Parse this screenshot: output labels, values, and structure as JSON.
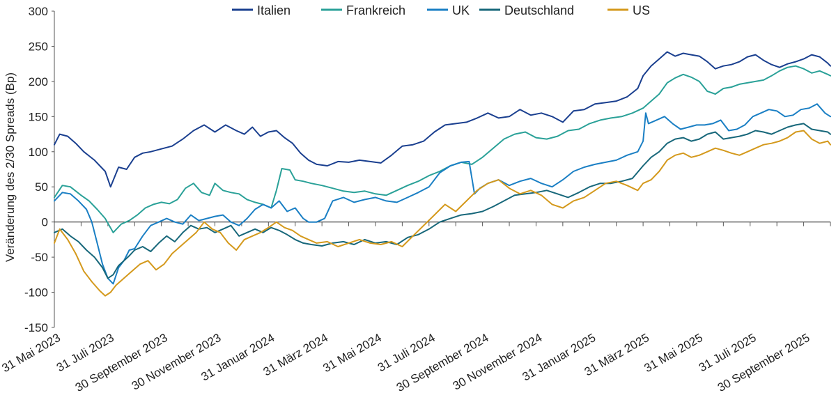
{
  "chart_data": {
    "type": "line",
    "title": "",
    "xlabel": "",
    "ylabel": "Veränderung des 2/30 Spreads (Bp)",
    "ylim": [
      -150,
      300
    ],
    "yticks": [
      300,
      250,
      200,
      150,
      100,
      50,
      0,
      -50,
      -100,
      -150
    ],
    "xlim": [
      0,
      29
    ],
    "x_ticks": [
      {
        "label": "31 Mai 2023",
        "x": 0
      },
      {
        "label": "31 Juli 2023",
        "x": 2
      },
      {
        "label": "30 September 2023",
        "x": 4
      },
      {
        "label": "30 November 2023",
        "x": 6
      },
      {
        "label": "31 Januar 2024",
        "x": 8
      },
      {
        "label": "31 März 2024",
        "x": 10
      },
      {
        "label": "31 Mai 2024",
        "x": 12
      },
      {
        "label": "31 Juli 2024",
        "x": 14
      },
      {
        "label": "30 September 2024",
        "x": 16
      },
      {
        "label": "30 November 2024",
        "x": 18
      },
      {
        "label": "31 Januar 2025",
        "x": 20
      },
      {
        "label": "31 März 2025",
        "x": 22
      },
      {
        "label": "31 Mai 2025",
        "x": 24
      },
      {
        "label": "31 Juli 2025",
        "x": 26
      },
      {
        "label": "30 September 2025",
        "x": 28
      }
    ],
    "legend": "top",
    "series": [
      {
        "name": "Italien",
        "color": "#1a3f8f",
        "x": [
          0,
          0.2,
          0.5,
          0.8,
          1.1,
          1.5,
          1.9,
          2.1,
          2.4,
          2.7,
          3.0,
          3.3,
          3.6,
          4.0,
          4.4,
          4.8,
          5.2,
          5.6,
          6.0,
          6.4,
          6.8,
          7.1,
          7.4,
          7.7,
          8.0,
          8.3,
          8.6,
          8.9,
          9.2,
          9.5,
          9.8,
          10.2,
          10.6,
          11.0,
          11.4,
          11.8,
          12.2,
          12.6,
          13.0,
          13.4,
          13.8,
          14.2,
          14.6,
          15.0,
          15.4,
          15.8,
          16.2,
          16.6,
          17.0,
          17.4,
          17.8,
          18.2,
          18.6,
          19.0,
          19.4,
          19.8,
          20.2,
          20.6,
          21.0,
          21.4,
          21.8,
          22.0,
          22.3,
          22.6,
          22.9,
          23.2,
          23.5,
          23.8,
          24.1,
          24.4,
          24.7,
          25.0,
          25.3,
          25.6,
          25.9,
          26.2,
          26.5,
          26.8,
          27.1,
          27.4,
          27.7,
          28.0,
          28.3,
          28.6,
          28.9,
          29.0
        ],
        "values": [
          110,
          125,
          122,
          112,
          100,
          88,
          72,
          50,
          78,
          75,
          92,
          98,
          100,
          104,
          108,
          118,
          130,
          138,
          128,
          138,
          130,
          125,
          135,
          122,
          128,
          130,
          120,
          112,
          98,
          88,
          82,
          80,
          86,
          85,
          88,
          86,
          84,
          95,
          108,
          110,
          115,
          128,
          138,
          140,
          142,
          148,
          155,
          148,
          150,
          160,
          152,
          155,
          150,
          142,
          158,
          160,
          168,
          170,
          172,
          178,
          190,
          208,
          222,
          232,
          242,
          236,
          240,
          238,
          236,
          228,
          218,
          222,
          224,
          228,
          235,
          238,
          230,
          224,
          220,
          225,
          228,
          232,
          238,
          235,
          226,
          222
        ]
      },
      {
        "name": "Frankreich",
        "color": "#2aa198",
        "x": [
          0,
          0.3,
          0.6,
          1.0,
          1.3,
          1.6,
          1.9,
          2.2,
          2.5,
          2.8,
          3.1,
          3.4,
          3.7,
          4.0,
          4.3,
          4.6,
          4.9,
          5.2,
          5.5,
          5.8,
          6.0,
          6.3,
          6.6,
          6.9,
          7.2,
          7.5,
          7.8,
          8.1,
          8.3,
          8.5,
          8.8,
          9.0,
          9.3,
          9.6,
          10.0,
          10.4,
          10.8,
          11.2,
          11.6,
          12.0,
          12.4,
          12.8,
          13.2,
          13.6,
          14.0,
          14.4,
          14.8,
          15.2,
          15.6,
          16.0,
          16.4,
          16.8,
          17.2,
          17.6,
          18.0,
          18.4,
          18.8,
          19.2,
          19.6,
          20.0,
          20.4,
          20.8,
          21.2,
          21.6,
          22.0,
          22.3,
          22.6,
          22.9,
          23.2,
          23.5,
          23.8,
          24.1,
          24.4,
          24.7,
          25.0,
          25.3,
          25.6,
          25.9,
          26.2,
          26.5,
          26.8,
          27.1,
          27.4,
          27.7,
          28.0,
          28.3,
          28.6,
          28.9,
          29.0
        ],
        "values": [
          35,
          52,
          50,
          38,
          30,
          18,
          5,
          -15,
          -3,
          2,
          10,
          20,
          25,
          28,
          26,
          32,
          48,
          55,
          42,
          38,
          55,
          45,
          42,
          40,
          32,
          28,
          25,
          20,
          45,
          76,
          74,
          60,
          58,
          55,
          52,
          48,
          44,
          42,
          44,
          40,
          38,
          45,
          52,
          58,
          66,
          72,
          80,
          85,
          82,
          92,
          105,
          118,
          125,
          128,
          120,
          118,
          122,
          130,
          132,
          140,
          145,
          148,
          150,
          155,
          162,
          172,
          182,
          198,
          205,
          210,
          206,
          200,
          186,
          182,
          190,
          192,
          196,
          198,
          200,
          202,
          208,
          215,
          220,
          222,
          218,
          212,
          215,
          210,
          208
        ]
      },
      {
        "name": "UK",
        "color": "#1a7fc4",
        "x": [
          0,
          0.3,
          0.6,
          0.9,
          1.2,
          1.4,
          1.6,
          1.8,
          2.0,
          2.2,
          2.4,
          2.6,
          2.8,
          3.0,
          3.3,
          3.6,
          3.9,
          4.2,
          4.5,
          4.8,
          5.1,
          5.4,
          5.7,
          6.0,
          6.3,
          6.6,
          6.9,
          7.2,
          7.5,
          7.8,
          8.1,
          8.4,
          8.7,
          9.0,
          9.3,
          9.5,
          9.8,
          10.1,
          10.4,
          10.8,
          11.2,
          11.6,
          12.0,
          12.4,
          12.8,
          13.2,
          13.6,
          14.0,
          14.4,
          14.8,
          15.2,
          15.5,
          15.7,
          15.9,
          16.2,
          16.6,
          17.0,
          17.4,
          17.8,
          18.2,
          18.6,
          19.0,
          19.4,
          19.8,
          20.2,
          20.6,
          21.0,
          21.4,
          21.8,
          22.0,
          22.1,
          22.2,
          22.5,
          22.8,
          23.1,
          23.4,
          23.7,
          24.0,
          24.3,
          24.6,
          24.9,
          25.2,
          25.5,
          25.8,
          26.1,
          26.4,
          26.7,
          27.0,
          27.3,
          27.6,
          27.9,
          28.2,
          28.5,
          28.8,
          29.0
        ],
        "values": [
          30,
          42,
          40,
          30,
          18,
          0,
          -30,
          -60,
          -80,
          -88,
          -65,
          -55,
          -40,
          -38,
          -20,
          -5,
          0,
          5,
          0,
          -3,
          10,
          2,
          5,
          8,
          10,
          0,
          -5,
          5,
          18,
          25,
          20,
          30,
          15,
          20,
          5,
          0,
          0,
          5,
          30,
          35,
          28,
          32,
          35,
          30,
          28,
          35,
          42,
          50,
          70,
          80,
          85,
          86,
          40,
          48,
          55,
          60,
          52,
          58,
          62,
          55,
          50,
          60,
          72,
          78,
          82,
          85,
          88,
          95,
          100,
          115,
          155,
          140,
          145,
          150,
          140,
          132,
          135,
          138,
          138,
          140,
          145,
          130,
          132,
          138,
          150,
          155,
          160,
          158,
          150,
          152,
          160,
          162,
          168,
          155,
          150
        ]
      },
      {
        "name": "Deutschland",
        "color": "#17677a",
        "x": [
          0,
          0.3,
          0.6,
          0.9,
          1.2,
          1.5,
          1.8,
          2.0,
          2.2,
          2.4,
          2.6,
          2.8,
          3.0,
          3.3,
          3.6,
          3.9,
          4.2,
          4.5,
          4.8,
          5.1,
          5.4,
          5.7,
          6.0,
          6.3,
          6.6,
          6.9,
          7.2,
          7.5,
          7.8,
          8.1,
          8.4,
          8.7,
          9.0,
          9.3,
          9.6,
          10.0,
          10.4,
          10.8,
          11.2,
          11.6,
          12.0,
          12.4,
          12.8,
          13.2,
          13.6,
          14.0,
          14.4,
          14.8,
          15.2,
          15.6,
          16.0,
          16.4,
          16.8,
          17.2,
          17.6,
          18.0,
          18.4,
          18.8,
          19.2,
          19.6,
          20.0,
          20.4,
          20.8,
          21.2,
          21.6,
          22.0,
          22.3,
          22.6,
          22.9,
          23.2,
          23.5,
          23.8,
          24.1,
          24.4,
          24.7,
          25.0,
          25.3,
          25.6,
          25.9,
          26.2,
          26.5,
          26.8,
          27.1,
          27.4,
          27.7,
          28.0,
          28.3,
          28.6,
          28.9,
          29.0
        ],
        "values": [
          -15,
          -10,
          -20,
          -28,
          -40,
          -50,
          -65,
          -80,
          -75,
          -62,
          -55,
          -48,
          -40,
          -35,
          -42,
          -30,
          -20,
          -28,
          -15,
          -5,
          -10,
          -8,
          -15,
          -10,
          -5,
          -20,
          -15,
          -10,
          -15,
          -8,
          -12,
          -18,
          -25,
          -30,
          -32,
          -34,
          -30,
          -28,
          -32,
          -25,
          -30,
          -28,
          -32,
          -22,
          -18,
          -10,
          0,
          5,
          10,
          12,
          15,
          22,
          30,
          38,
          40,
          42,
          45,
          40,
          35,
          42,
          50,
          55,
          55,
          58,
          62,
          80,
          92,
          100,
          112,
          118,
          120,
          115,
          118,
          125,
          128,
          118,
          120,
          122,
          125,
          130,
          128,
          125,
          130,
          135,
          138,
          140,
          132,
          130,
          128,
          125
        ]
      },
      {
        "name": "US",
        "color": "#d4991c",
        "x": [
          0,
          0.2,
          0.5,
          0.8,
          1.1,
          1.4,
          1.7,
          1.9,
          2.1,
          2.3,
          2.6,
          2.9,
          3.2,
          3.5,
          3.8,
          4.1,
          4.4,
          4.7,
          5.0,
          5.3,
          5.6,
          5.9,
          6.2,
          6.5,
          6.8,
          7.1,
          7.4,
          7.7,
          8.0,
          8.3,
          8.6,
          8.9,
          9.2,
          9.5,
          9.8,
          10.2,
          10.6,
          11.0,
          11.4,
          11.8,
          12.2,
          12.6,
          13.0,
          13.4,
          13.8,
          14.2,
          14.6,
          15.0,
          15.4,
          15.8,
          16.2,
          16.6,
          17.0,
          17.4,
          17.8,
          18.2,
          18.6,
          19.0,
          19.4,
          19.8,
          20.2,
          20.6,
          21.0,
          21.4,
          21.8,
          22.0,
          22.3,
          22.6,
          22.9,
          23.2,
          23.5,
          23.8,
          24.1,
          24.4,
          24.7,
          25.0,
          25.3,
          25.6,
          25.9,
          26.2,
          26.5,
          26.8,
          27.1,
          27.4,
          27.7,
          28.0,
          28.3,
          28.6,
          28.9,
          29.0
        ],
        "values": [
          -30,
          -10,
          -25,
          -45,
          -70,
          -85,
          -98,
          -105,
          -100,
          -90,
          -80,
          -70,
          -60,
          -55,
          -68,
          -60,
          -45,
          -35,
          -25,
          -15,
          0,
          -10,
          -15,
          -30,
          -40,
          -25,
          -20,
          -15,
          -8,
          0,
          -8,
          -12,
          -20,
          -25,
          -30,
          -28,
          -35,
          -30,
          -25,
          -30,
          -32,
          -28,
          -35,
          -20,
          -5,
          10,
          25,
          15,
          30,
          45,
          55,
          60,
          48,
          40,
          45,
          38,
          25,
          20,
          30,
          35,
          45,
          55,
          58,
          52,
          45,
          55,
          60,
          72,
          88,
          95,
          98,
          92,
          95,
          100,
          105,
          102,
          98,
          95,
          100,
          105,
          110,
          112,
          115,
          120,
          128,
          130,
          118,
          112,
          115,
          110
        ]
      }
    ]
  }
}
